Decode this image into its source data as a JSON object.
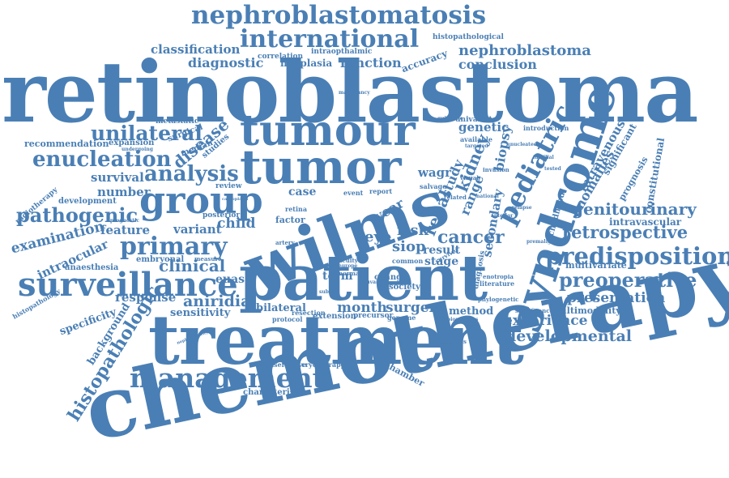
{
  "word_color": "#4a7fb5",
  "background_color": "#ffffff",
  "words": [
    {
      "text": "chemotherapy",
      "rotation": "tilted"
    },
    {
      "text": "retinoblastoma",
      "rotation": "horizontal"
    },
    {
      "text": "treatment",
      "rotation": "horizontal"
    },
    {
      "text": "patient",
      "rotation": "horizontal"
    },
    {
      "text": "wilms",
      "rotation": "tilted"
    },
    {
      "text": "tumour",
      "rotation": "horizontal"
    },
    {
      "text": "tumor",
      "rotation": "horizontal"
    },
    {
      "text": "syndrome",
      "rotation": "vertical"
    },
    {
      "text": "group",
      "rotation": "horizontal"
    },
    {
      "text": "surveillance",
      "rotation": "horizontal"
    },
    {
      "text": "management",
      "rotation": "horizontal"
    },
    {
      "text": "nephroblastomatosis",
      "rotation": "horizontal"
    },
    {
      "text": "international",
      "rotation": "horizontal"
    },
    {
      "text": "predisposition",
      "rotation": "horizontal"
    },
    {
      "text": "preoperative",
      "rotation": "horizontal"
    },
    {
      "text": "pediatric",
      "rotation": "vertical"
    },
    {
      "text": "primary",
      "rotation": "horizontal"
    },
    {
      "text": "enucleation",
      "rotation": "horizontal"
    },
    {
      "text": "analysis",
      "rotation": "horizontal"
    },
    {
      "text": "unilateral",
      "rotation": "horizontal"
    },
    {
      "text": "pathogenic",
      "rotation": "horizontal"
    },
    {
      "text": "histopathologic",
      "rotation": "vertical"
    },
    {
      "text": "retrospective",
      "rotation": "horizontal"
    },
    {
      "text": "genitourinary",
      "rotation": "horizontal"
    },
    {
      "text": "developmental",
      "rotation": "horizontal"
    },
    {
      "text": "nephroblastoma",
      "rotation": "horizontal"
    },
    {
      "text": "cancer",
      "rotation": "horizontal"
    },
    {
      "text": "clinical",
      "rotation": "horizontal"
    },
    {
      "text": "disease",
      "rotation": "vertical"
    },
    {
      "text": "aniridia",
      "rotation": "horizontal"
    },
    {
      "text": "presentation",
      "rotation": "horizontal"
    },
    {
      "text": "experience",
      "rotation": "horizontal"
    },
    {
      "text": "kidney",
      "rotation": "vertical"
    },
    {
      "text": "renal",
      "rotation": "vertical"
    },
    {
      "text": "surgery",
      "rotation": "horizontal"
    },
    {
      "text": "examination",
      "rotation": "horizontal"
    },
    {
      "text": "month",
      "rotation": "horizontal"
    },
    {
      "text": "risk",
      "rotation": "horizontal"
    },
    {
      "text": "siop",
      "rotation": "horizontal"
    },
    {
      "text": "eye",
      "rotation": "horizontal"
    },
    {
      "text": "child",
      "rotation": "horizontal"
    },
    {
      "text": "diagnostic",
      "rotation": "horizontal"
    },
    {
      "text": "function",
      "rotation": "horizontal"
    },
    {
      "text": "classification",
      "rotation": "horizontal"
    },
    {
      "text": "conclusion",
      "rotation": "horizontal"
    },
    {
      "text": "anomalies",
      "rotation": "vertical"
    },
    {
      "text": "intravenous",
      "rotation": "vertical"
    },
    {
      "text": "secondary",
      "rotation": "vertical"
    },
    {
      "text": "biopsy",
      "rotation": "vertical"
    },
    {
      "text": "range",
      "rotation": "vertical"
    },
    {
      "text": "study",
      "rotation": "vertical"
    },
    {
      "text": "year",
      "rotation": "vertical"
    },
    {
      "text": "genetic",
      "rotation": "horizontal"
    },
    {
      "text": "feature",
      "rotation": "horizontal"
    },
    {
      "text": "variant",
      "rotation": "horizontal"
    },
    {
      "text": "survival",
      "rotation": "horizontal"
    },
    {
      "text": "number",
      "rotation": "horizontal"
    },
    {
      "text": "intraocular",
      "rotation": "horizontal"
    },
    {
      "text": "response",
      "rotation": "horizontal"
    },
    {
      "text": "sensitivity",
      "rotation": "horizontal"
    },
    {
      "text": "specificity",
      "rotation": "horizontal"
    },
    {
      "text": "background",
      "rotation": "vertical"
    },
    {
      "text": "result",
      "rotation": "horizontal"
    },
    {
      "text": "stage",
      "rotation": "horizontal"
    },
    {
      "text": "wagr",
      "rotation": "horizontal"
    },
    {
      "text": "case",
      "rotation": "horizontal"
    },
    {
      "text": "euas",
      "rotation": "horizontal"
    },
    {
      "text": "term",
      "rotation": "horizontal"
    },
    {
      "text": "bilateral",
      "rotation": "horizontal"
    },
    {
      "text": "method",
      "rotation": "horizontal"
    },
    {
      "text": "chamber",
      "rotation": "horizontal"
    },
    {
      "text": "multimodality",
      "rotation": "horizontal"
    },
    {
      "text": "multivariate",
      "rotation": "horizontal"
    },
    {
      "text": "intravascular",
      "rotation": "horizontal"
    },
    {
      "text": "constitutional",
      "rotation": "vertical"
    },
    {
      "text": "significant",
      "rotation": "vertical"
    },
    {
      "text": "prognosis",
      "rotation": "vertical"
    },
    {
      "text": "childhood",
      "rotation": "vertical"
    },
    {
      "text": "neoplasia",
      "rotation": "horizontal"
    },
    {
      "text": "accuracy",
      "rotation": "horizontal"
    },
    {
      "text": "histopathological",
      "rotation": "horizontal"
    },
    {
      "text": "intraopthalmic",
      "rotation": "horizontal"
    },
    {
      "text": "correlation",
      "rotation": "horizontal"
    },
    {
      "text": "recommendation",
      "rotation": "horizontal"
    },
    {
      "text": "expansion",
      "rotation": "horizontal"
    },
    {
      "text": "metastatic",
      "rotation": "horizontal"
    },
    {
      "text": "surgical",
      "rotation": "horizontal"
    },
    {
      "text": "median",
      "rotation": "horizontal"
    },
    {
      "text": "studies",
      "rotation": "horizontal"
    },
    {
      "text": "review",
      "rotation": "horizontal"
    },
    {
      "text": "development",
      "rotation": "horizontal"
    },
    {
      "text": "radiotherapy",
      "rotation": "horizontal"
    },
    {
      "text": "posterior",
      "rotation": "horizontal"
    },
    {
      "text": "embryonal",
      "rotation": "horizontal"
    },
    {
      "text": "anaesthesia",
      "rotation": "horizontal"
    },
    {
      "text": "histopathology",
      "rotation": "horizontal"
    },
    {
      "text": "univariate",
      "rotation": "horizontal"
    },
    {
      "text": "available",
      "rotation": "horizontal"
    },
    {
      "text": "introduction",
      "rotation": "horizontal"
    },
    {
      "text": "invasion",
      "rotation": "horizontal"
    },
    {
      "text": "salvage",
      "rotation": "horizontal"
    },
    {
      "text": "related",
      "rotation": "horizontal"
    },
    {
      "text": "report",
      "rotation": "horizontal"
    },
    {
      "text": "event",
      "rotation": "horizontal"
    },
    {
      "text": "factor",
      "rotation": "horizontal"
    },
    {
      "text": "common",
      "rotation": "horizontal"
    },
    {
      "text": "change",
      "rotation": "horizontal"
    },
    {
      "text": "society",
      "rotation": "horizontal"
    },
    {
      "text": "extension",
      "rotation": "horizontal"
    },
    {
      "text": "precursor",
      "rotation": "horizontal"
    },
    {
      "text": "genome",
      "rotation": "horizontal"
    },
    {
      "text": "resection",
      "rotation": "horizontal"
    },
    {
      "text": "protocol",
      "rotation": "horizontal"
    },
    {
      "text": "conservative",
      "rotation": "horizontal"
    },
    {
      "text": "cryotherapy",
      "rotation": "horizontal"
    },
    {
      "text": "characteristic",
      "rotation": "horizontal"
    },
    {
      "text": "metastasis",
      "rotation": "horizontal"
    },
    {
      "text": "literature",
      "rotation": "horizontal"
    },
    {
      "text": "phylogenetic",
      "rotation": "horizontal"
    },
    {
      "text": "significance",
      "rotation": "horizontal"
    },
    {
      "text": "biomarkers",
      "rotation": "horizontal"
    },
    {
      "text": "enotropia",
      "rotation": "horizontal"
    },
    {
      "text": "premalignant",
      "rotation": "horizontal"
    },
    {
      "text": "undergoing",
      "rotation": "horizontal"
    },
    {
      "text": "prognostic",
      "rotation": "horizontal"
    },
    {
      "text": "diagnosis",
      "rotation": "vertical"
    },
    {
      "text": "acuity",
      "rotation": "horizontal"
    },
    {
      "text": "normal",
      "rotation": "horizontal"
    },
    {
      "text": "artery",
      "rotation": "horizontal"
    },
    {
      "text": "retina",
      "rotation": "horizontal"
    },
    {
      "text": "malignancy",
      "rotation": "horizontal"
    },
    {
      "text": "survivor",
      "rotation": "horizontal"
    },
    {
      "text": "relapse",
      "rotation": "horizontal"
    },
    {
      "text": "visual",
      "rotation": "horizontal"
    },
    {
      "text": "targeted",
      "rotation": "horizontal"
    },
    {
      "text": "guideline",
      "rotation": "horizontal"
    },
    {
      "text": "europe",
      "rotation": "horizontal"
    },
    {
      "text": "measure",
      "rotation": "horizontal"
    },
    {
      "text": "anterior",
      "rotation": "horizontal"
    },
    {
      "text": "subset",
      "rotation": "horizontal"
    },
    {
      "text": "adjuvant",
      "rotation": "horizontal"
    },
    {
      "text": "nephrotoxicity",
      "rotation": "horizontal"
    },
    {
      "text": "carboplatin",
      "rotation": "horizontal"
    },
    {
      "text": "enucleated",
      "rotation": "horizontal"
    },
    {
      "text": "familial",
      "rotation": "horizontal"
    },
    {
      "text": "tested",
      "rotation": "horizontal"
    },
    {
      "text": "national",
      "rotation": "horizontal"
    }
  ]
}
